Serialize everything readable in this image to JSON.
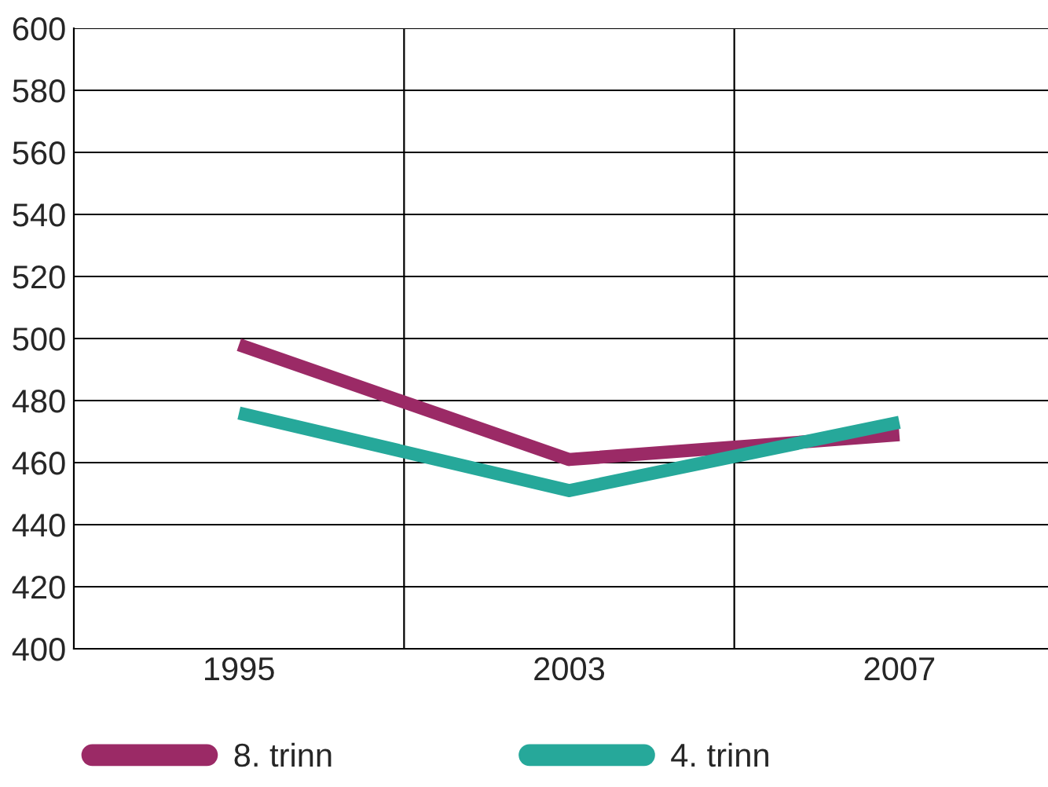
{
  "chart_data": {
    "type": "line",
    "categories": [
      "1995",
      "2003",
      "2007"
    ],
    "series": [
      {
        "name": "8. trinn",
        "color": "#9b2a66",
        "values": [
          498,
          461,
          469
        ]
      },
      {
        "name": "4. trinn",
        "color": "#26a89a",
        "values": [
          476,
          451,
          473
        ]
      }
    ],
    "ylim": [
      400,
      600
    ],
    "yticks": [
      400,
      420,
      440,
      460,
      480,
      500,
      520,
      540,
      560,
      580,
      600
    ],
    "grid": true,
    "legend": "bottom",
    "marker": "none",
    "line_style": "solid"
  }
}
